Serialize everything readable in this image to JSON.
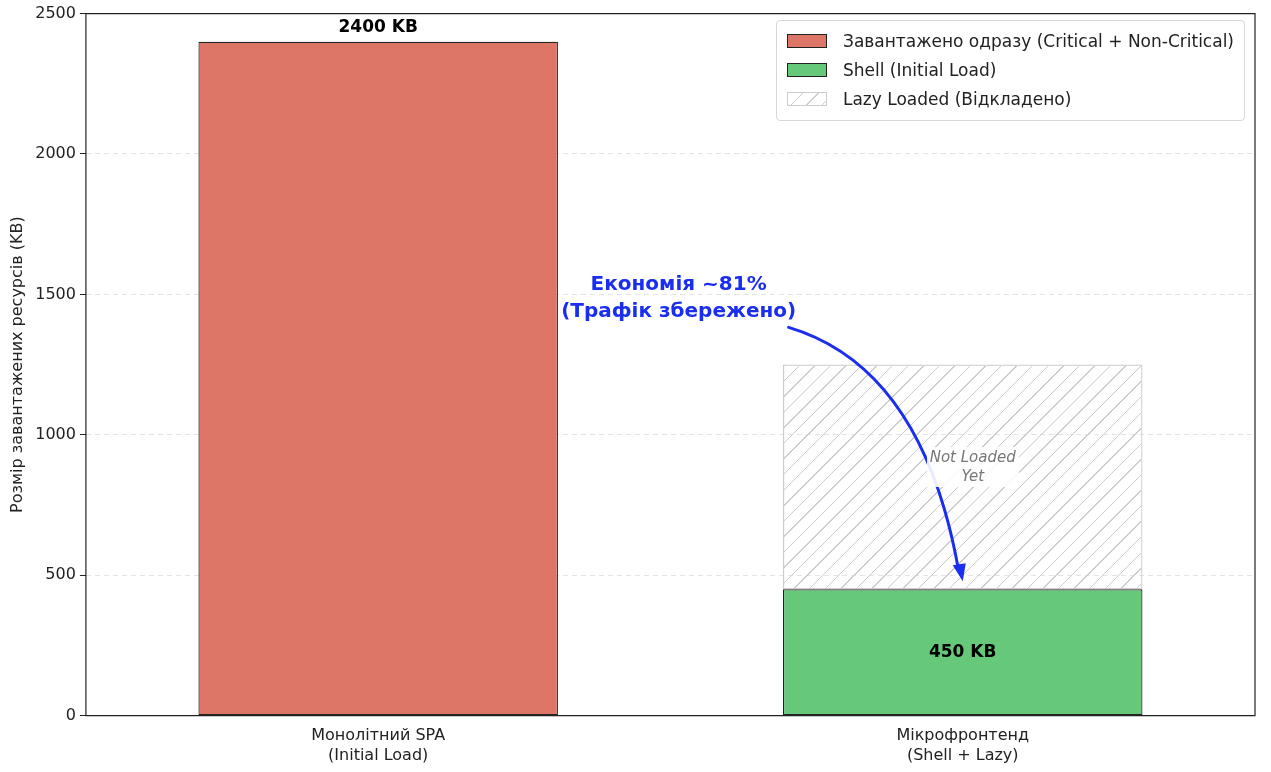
{
  "chart_data": {
    "type": "bar",
    "stacked": true,
    "categories": [
      "Монолітний SPA\n(Initial Load)",
      "Мікрофронтенд\n(Shell + Lazy)"
    ],
    "ylabel": "Розмір завантажених ресурсів (KB)",
    "series": [
      {
        "name": "Завантажено одразу (Critical + Non-Critical)",
        "color": "#de7667",
        "values": [
          2400,
          null
        ],
        "value_labels": [
          "2400 KB",
          null
        ]
      },
      {
        "name": "Shell (Initial Load)",
        "color": "#66c97a",
        "values": [
          null,
          450
        ],
        "value_labels": [
          null,
          "450 KB"
        ]
      },
      {
        "name": "Lazy Loaded (Відкладено)",
        "color": "#cccccc",
        "values": [
          null,
          800
        ]
      }
    ],
    "ylim": [
      0,
      2500
    ],
    "yticks": [
      0,
      500,
      1000,
      1500,
      2000,
      2500
    ],
    "grid": "y",
    "legend": "top right",
    "annotations": [
      "Економія ~81%\n(Трафік збережено)",
      "Not Loaded\nYet"
    ]
  }
}
